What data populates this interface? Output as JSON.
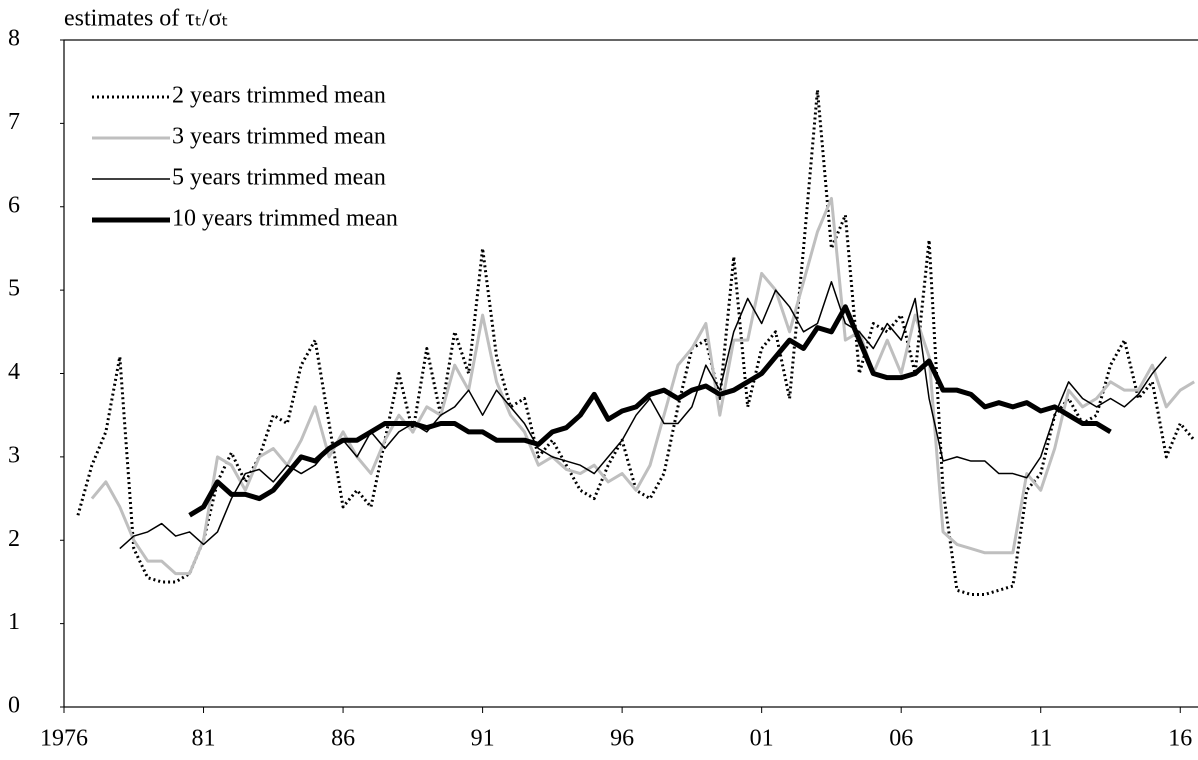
{
  "chart_data": {
    "type": "line",
    "y_label": "estimates of τₜ/σₜ",
    "x": [
      1976.5,
      1977.0,
      1977.5,
      1978.0,
      1978.5,
      1979.0,
      1979.5,
      1980.0,
      1980.5,
      1981.0,
      1981.5,
      1982.0,
      1982.5,
      1983.0,
      1983.5,
      1984.0,
      1984.5,
      1985.0,
      1985.5,
      1986.0,
      1986.5,
      1987.0,
      1987.5,
      1988.0,
      1988.5,
      1989.0,
      1989.5,
      1990.0,
      1990.5,
      1991.0,
      1991.5,
      1992.0,
      1992.5,
      1993.0,
      1993.5,
      1994.0,
      1994.5,
      1995.0,
      1995.5,
      1996.0,
      1996.5,
      1997.0,
      1997.5,
      1998.0,
      1998.5,
      1999.0,
      1999.5,
      2000.0,
      2000.5,
      2001.0,
      2001.5,
      2002.0,
      2002.5,
      2003.0,
      2003.5,
      2004.0,
      2004.5,
      2005.0,
      2005.5,
      2006.0,
      2006.5,
      2007.0,
      2007.5,
      2008.0,
      2008.5,
      2009.0,
      2009.5,
      2010.0,
      2010.5,
      2011.0,
      2011.5,
      2012.0,
      2012.5,
      2013.0,
      2013.5,
      2014.0,
      2014.5,
      2015.0,
      2015.5,
      2016.0,
      2016.5
    ],
    "series": [
      {
        "name": "2 years trimmed mean",
        "color": "#000000",
        "line_style": "dotted",
        "line_width": 3,
        "values": [
          2.3,
          2.9,
          3.3,
          4.2,
          1.9,
          1.55,
          1.5,
          1.5,
          1.6,
          2.0,
          2.7,
          3.05,
          2.7,
          3.0,
          3.5,
          3.4,
          4.1,
          4.4,
          3.4,
          2.4,
          2.6,
          2.4,
          3.2,
          4.0,
          3.3,
          4.3,
          3.5,
          4.5,
          4.0,
          5.5,
          4.2,
          3.6,
          3.7,
          3.0,
          3.2,
          2.9,
          2.6,
          2.5,
          2.9,
          3.2,
          2.6,
          2.5,
          2.8,
          3.6,
          4.3,
          4.4,
          3.7,
          5.4,
          3.6,
          4.3,
          4.5,
          3.7,
          5.5,
          7.4,
          5.5,
          5.9,
          4.0,
          4.6,
          4.5,
          4.7,
          4.0,
          5.6,
          2.6,
          1.4,
          1.35,
          1.35,
          1.4,
          1.45,
          2.6,
          2.8,
          3.5,
          3.7,
          3.4,
          3.5,
          4.1,
          4.4,
          3.7,
          3.9,
          3.0,
          3.4,
          3.2
        ]
      },
      {
        "name": "3 years trimmed mean",
        "color": "#bfbfbf",
        "line_style": "solid",
        "line_width": 3,
        "values": [
          null,
          2.5,
          2.7,
          2.4,
          2.0,
          1.75,
          1.75,
          1.6,
          1.6,
          2.0,
          3.0,
          2.9,
          2.6,
          3.0,
          3.1,
          2.9,
          3.2,
          3.6,
          3.0,
          3.3,
          3.0,
          2.8,
          3.2,
          3.5,
          3.3,
          3.6,
          3.5,
          4.1,
          3.8,
          4.7,
          3.9,
          3.5,
          3.3,
          2.9,
          3.0,
          2.85,
          2.8,
          2.9,
          2.7,
          2.8,
          2.6,
          2.9,
          3.5,
          4.1,
          4.3,
          4.6,
          3.5,
          4.4,
          4.4,
          5.2,
          5.0,
          4.5,
          5.1,
          5.7,
          6.1,
          4.4,
          4.5,
          4.0,
          4.4,
          4.0,
          4.7,
          4.2,
          2.1,
          1.95,
          1.9,
          1.85,
          1.85,
          1.85,
          2.8,
          2.6,
          3.1,
          3.8,
          3.6,
          3.7,
          3.9,
          3.8,
          3.8,
          4.1,
          3.6,
          3.8,
          3.9
        ]
      },
      {
        "name": "5 years trimmed mean",
        "color": "#000000",
        "line_style": "solid",
        "line_width": 1.5,
        "values": [
          null,
          null,
          null,
          1.9,
          2.05,
          2.1,
          2.2,
          2.05,
          2.1,
          1.95,
          2.1,
          2.5,
          2.8,
          2.85,
          2.7,
          2.9,
          2.8,
          2.9,
          3.1,
          3.2,
          3.0,
          3.3,
          3.1,
          3.3,
          3.4,
          3.3,
          3.5,
          3.6,
          3.8,
          3.5,
          3.8,
          3.6,
          3.4,
          3.1,
          3.0,
          2.95,
          2.9,
          2.8,
          3.0,
          3.2,
          3.5,
          3.7,
          3.4,
          3.4,
          3.6,
          4.1,
          3.8,
          4.5,
          4.9,
          4.6,
          5.0,
          4.8,
          4.5,
          4.6,
          5.1,
          4.6,
          4.5,
          4.3,
          4.6,
          4.4,
          4.9,
          3.7,
          2.95,
          3.0,
          2.95,
          2.95,
          2.8,
          2.8,
          2.75,
          3.0,
          3.5,
          3.9,
          3.7,
          3.6,
          3.7,
          3.6,
          3.75,
          4.0,
          4.2,
          null,
          null
        ]
      },
      {
        "name": "10 years trimmed mean",
        "color": "#000000",
        "line_style": "solid",
        "line_width": 5,
        "values": [
          null,
          null,
          null,
          null,
          null,
          null,
          null,
          null,
          2.3,
          2.4,
          2.7,
          2.55,
          2.55,
          2.5,
          2.6,
          2.8,
          3.0,
          2.95,
          3.1,
          3.2,
          3.2,
          3.3,
          3.4,
          3.4,
          3.4,
          3.35,
          3.4,
          3.4,
          3.3,
          3.3,
          3.2,
          3.2,
          3.2,
          3.15,
          3.3,
          3.35,
          3.5,
          3.75,
          3.45,
          3.55,
          3.6,
          3.75,
          3.8,
          3.7,
          3.8,
          3.85,
          3.75,
          3.8,
          3.9,
          4.0,
          4.2,
          4.4,
          4.3,
          4.55,
          4.5,
          4.8,
          4.4,
          4.0,
          3.95,
          3.95,
          4.0,
          4.15,
          3.8,
          3.8,
          3.75,
          3.6,
          3.65,
          3.6,
          3.65,
          3.55,
          3.6,
          3.5,
          3.4,
          3.4,
          3.3,
          null,
          null,
          null,
          null,
          null,
          null
        ]
      }
    ],
    "xlim": [
      1976,
      2016.6
    ],
    "xticks": [
      1976,
      {
        "value": 1981,
        "label": "81"
      },
      {
        "value": 1986,
        "label": "86"
      },
      {
        "value": 1991,
        "label": "91"
      },
      {
        "value": 1996,
        "label": "96"
      },
      {
        "value": 2001,
        "label": "01"
      },
      {
        "value": 2006,
        "label": "06"
      },
      {
        "value": 2011,
        "label": "11"
      },
      {
        "value": 2016,
        "label": "16"
      }
    ],
    "ylim": [
      0,
      8
    ],
    "yticks": [
      0,
      1,
      2,
      3,
      4,
      5,
      6,
      7,
      8
    ],
    "grid": false,
    "legend": "upper left"
  }
}
